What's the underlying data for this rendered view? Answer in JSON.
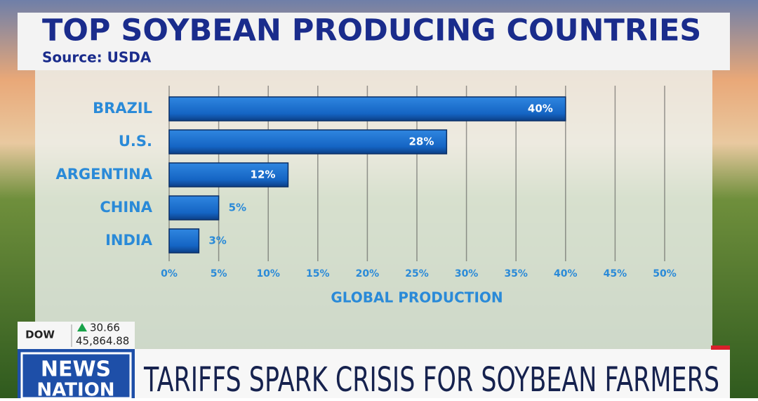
{
  "chart_data": {
    "type": "bar",
    "orientation": "horizontal",
    "title": "TOP SOYBEAN PRODUCING COUNTRIES",
    "subtitle": "Source: USDA",
    "categories": [
      "BRAZIL",
      "U.S.",
      "ARGENTINA",
      "CHINA",
      "INDIA"
    ],
    "values": [
      40,
      28,
      12,
      5,
      3
    ],
    "value_labels": [
      "40%",
      "28%",
      "12%",
      "5%",
      "3%"
    ],
    "color": "#1565c4",
    "xlim": [
      0,
      50
    ],
    "xticks": [
      {
        "value": 0,
        "label": "0%"
      },
      {
        "value": 5,
        "label": "5%"
      },
      {
        "value": 10,
        "label": "10%"
      },
      {
        "value": 15,
        "label": "15%"
      },
      {
        "value": 20,
        "label": "20%"
      },
      {
        "value": 25,
        "label": "25%"
      },
      {
        "value": 30,
        "label": "30%"
      },
      {
        "value": 35,
        "label": "35%"
      },
      {
        "value": 40,
        "label": "40%"
      },
      {
        "value": 45,
        "label": "45%"
      },
      {
        "value": 50,
        "label": "50%"
      }
    ],
    "xlabel": "GLOBAL PRODUCTION",
    "grid": true
  },
  "ticker": {
    "index": "DOW",
    "change": "30.66",
    "level": "45,864.88"
  },
  "logo": {
    "line1": "NEWS",
    "line2": "NATION"
  },
  "headline": "TARIFFS SPARK CRISIS FOR SOYBEAN FARMERS"
}
